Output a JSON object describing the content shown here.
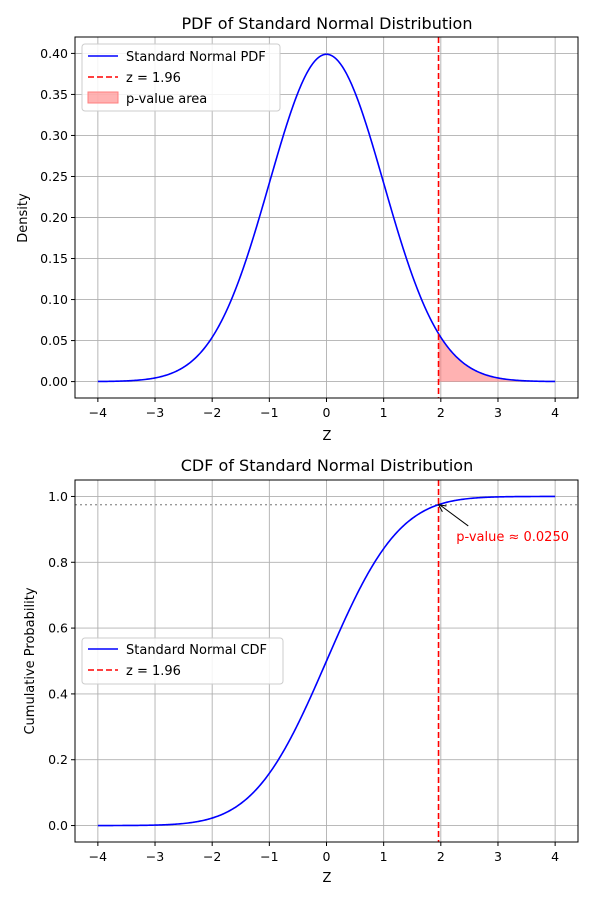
{
  "colors": {
    "curve": "#0000ff",
    "zline": "#ff0000",
    "fill": "#ff7f7f",
    "grid": "#b0b0b0",
    "ref": "#999999",
    "annot": "#ff0000"
  },
  "chart_data": [
    {
      "type": "line",
      "title": "PDF of Standard Normal Distribution",
      "xlabel": "Z",
      "ylabel": "Density",
      "xlim": [
        -4.4,
        4.4
      ],
      "ylim": [
        -0.02,
        0.42
      ],
      "xticks": [
        -4,
        -3,
        -2,
        -1,
        0,
        1,
        2,
        3,
        4
      ],
      "yticks": [
        0.0,
        0.05,
        0.1,
        0.15,
        0.2,
        0.25,
        0.3,
        0.35,
        0.4
      ],
      "xtick_labels": [
        "−4",
        "−3",
        "−2",
        "−1",
        "0",
        "1",
        "2",
        "3",
        "4"
      ],
      "ytick_labels": [
        "0.00",
        "0.05",
        "0.10",
        "0.15",
        "0.20",
        "0.25",
        "0.30",
        "0.35",
        "0.40"
      ],
      "grid": true,
      "legend_position": "top-left",
      "function": "normal_pdf",
      "x_range": [
        -4,
        4
      ],
      "series": [
        {
          "name": "Standard Normal PDF",
          "style": "line"
        },
        {
          "name": "z = 1.96",
          "style": "vline",
          "x": 1.96
        },
        {
          "name": "p-value area",
          "style": "fill",
          "from": 1.96,
          "to": 4
        }
      ]
    },
    {
      "type": "line",
      "title": "CDF of Standard Normal Distribution",
      "xlabel": "Z",
      "ylabel": "Cumulative Probability",
      "xlim": [
        -4.4,
        4.4
      ],
      "ylim": [
        -0.05,
        1.05
      ],
      "xticks": [
        -4,
        -3,
        -2,
        -1,
        0,
        1,
        2,
        3,
        4
      ],
      "yticks": [
        0.0,
        0.2,
        0.4,
        0.6,
        0.8,
        1.0
      ],
      "xtick_labels": [
        "−4",
        "−3",
        "−2",
        "−1",
        "0",
        "1",
        "2",
        "3",
        "4"
      ],
      "ytick_labels": [
        "0.0",
        "0.2",
        "0.4",
        "0.6",
        "0.8",
        "1.0"
      ],
      "grid": true,
      "legend_position": "center-left",
      "function": "normal_cdf",
      "x_range": [
        -4,
        4
      ],
      "series": [
        {
          "name": "Standard Normal CDF",
          "style": "line"
        },
        {
          "name": "z = 1.96",
          "style": "vline",
          "x": 1.96
        }
      ],
      "reference_line_y": 0.975,
      "annotation": {
        "text": "p-value ≈ 0.0250",
        "point": [
          1.96,
          0.975
        ],
        "text_at": [
          2.27,
          0.88
        ]
      }
    }
  ]
}
